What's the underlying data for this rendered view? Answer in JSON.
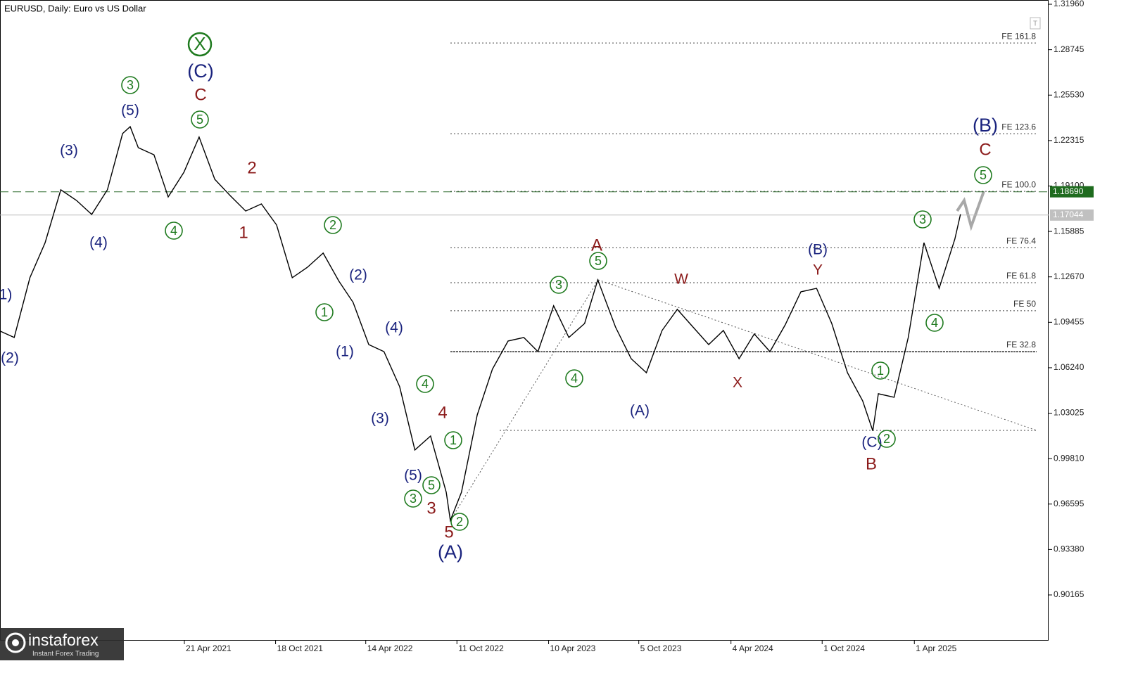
{
  "chart_data": {
    "type": "line",
    "title": "EURUSD, Daily:  Euro vs US Dollar",
    "color": "#000000",
    "x": [
      "2020-04-20",
      "2020-05-20",
      "2020-06-20",
      "2020-07-20",
      "2020-08-20",
      "2020-09-20",
      "2020-10-20",
      "2020-11-20",
      "2020-12-20",
      "2021-01-04",
      "2021-01-20",
      "2021-02-20",
      "2021-03-20",
      "2021-04-20",
      "2021-05-20",
      "2021-06-20",
      "2021-07-20",
      "2021-08-20",
      "2021-09-20",
      "2021-10-20",
      "2021-11-20",
      "2021-12-20",
      "2022-01-20",
      "2022-02-20",
      "2022-03-20",
      "2022-04-20",
      "2022-05-20",
      "2022-06-20",
      "2022-07-20",
      "2022-08-20",
      "2022-09-20",
      "2022-09-28",
      "2022-10-20",
      "2022-11-20",
      "2022-12-20",
      "2023-01-20",
      "2023-02-20",
      "2023-03-20",
      "2023-04-20",
      "2023-05-20",
      "2023-06-20",
      "2023-07-16",
      "2023-08-20",
      "2023-09-20",
      "2023-10-20",
      "2023-11-20",
      "2023-12-20",
      "2024-01-20",
      "2024-02-20",
      "2024-03-20",
      "2024-04-20",
      "2024-05-20",
      "2024-06-20",
      "2024-07-20",
      "2024-08-20",
      "2024-09-20",
      "2024-10-20",
      "2024-11-20",
      "2024-12-20",
      "2025-01-09",
      "2025-01-20",
      "2025-02-20",
      "2025-03-20",
      "2025-04-20",
      "2025-05-20",
      "2025-06-20",
      "2025-07-01"
    ],
    "values": [
      1.0887,
      1.0838,
      1.1261,
      1.1509,
      1.1883,
      1.1808,
      1.1709,
      1.1883,
      1.2281,
      1.233,
      1.2181,
      1.2131,
      1.1833,
      1.2007,
      1.2256,
      1.1957,
      1.1843,
      1.1733,
      1.1783,
      1.1634,
      1.1261,
      1.1335,
      1.1435,
      1.1236,
      1.1087,
      1.0788,
      1.0738,
      1.049,
      1.0042,
      1.0141,
      0.9743,
      0.9544,
      0.9743,
      1.029,
      1.0614,
      1.0813,
      1.0838,
      1.0738,
      1.1062,
      1.0838,
      1.0937,
      1.1246,
      1.0912,
      1.0688,
      1.0589,
      1.0888,
      1.1037,
      1.0912,
      1.0788,
      1.0888,
      1.0688,
      1.0863,
      1.0738,
      1.0927,
      1.1161,
      1.1186,
      1.0937,
      1.0589,
      1.039,
      1.0178,
      1.044,
      1.0415,
      1.0838,
      1.1509,
      1.1186,
      1.1534,
      1.171
    ],
    "xlim": [
      "2020-04-22",
      "2025-12-22"
    ],
    "xticks": [
      {
        "value": "2021-04-21",
        "label": "21 Apr 2021"
      },
      {
        "value": "2021-10-18",
        "label": "18 Oct 2021"
      },
      {
        "value": "2022-04-14",
        "label": "14 Apr 2022"
      },
      {
        "value": "2022-10-11",
        "label": "11 Oct 2022"
      },
      {
        "value": "2023-04-10",
        "label": "10 Apr 2023"
      },
      {
        "value": "2023-10-05",
        "label": "5 Oct 2023"
      },
      {
        "value": "2024-04-04",
        "label": "4 Apr 2024"
      },
      {
        "value": "2024-10-01",
        "label": "1 Oct 2024"
      },
      {
        "value": "2025-04-01",
        "label": "1 Apr 2025"
      }
    ],
    "ylim": [
      0.8698,
      1.3226
    ],
    "yticks": [
      {
        "value": 1.3196,
        "label": "1.31960"
      },
      {
        "value": 1.28745,
        "label": "1.28745"
      },
      {
        "value": 1.2553,
        "label": "1.25530"
      },
      {
        "value": 1.22315,
        "label": "1.22315"
      },
      {
        "value": 1.191,
        "label": "1.19100"
      },
      {
        "value": 1.15885,
        "label": "1.15885"
      },
      {
        "value": 1.1267,
        "label": "1.12670"
      },
      {
        "value": 1.09455,
        "label": "1.09455"
      },
      {
        "value": 1.0624,
        "label": "1.06240"
      },
      {
        "value": 1.03025,
        "label": "1.03025"
      },
      {
        "value": 0.9981,
        "label": "0.99810"
      },
      {
        "value": 0.96595,
        "label": "0.96595"
      },
      {
        "value": 0.9338,
        "label": "0.93380"
      },
      {
        "value": 0.90165,
        "label": "0.90165"
      }
    ],
    "levels": [
      {
        "value": 1.1869,
        "label": "1.18690",
        "color": "#1e6b1e"
      },
      {
        "value": 1.17044,
        "label": "1.17044",
        "color": "#c0c0c0"
      }
    ],
    "fib_levels": [
      {
        "value": 1.2922,
        "label": "FE 161.8"
      },
      {
        "value": 1.228,
        "label": "FE 123.6"
      },
      {
        "value": 1.1872,
        "label": "FE 100.0"
      },
      {
        "value": 1.1474,
        "label": "FE 76.4"
      },
      {
        "value": 1.1226,
        "label": "FE 61.8"
      },
      {
        "value": 1.1027,
        "label": "FE 50"
      },
      {
        "value": 1.0738,
        "label": "FE 32.8"
      },
      {
        "value": 1.0181
      }
    ],
    "annotations": [
      {
        "text": "1)"
      },
      {
        "text": "(2)"
      },
      {
        "text": "(3)"
      },
      {
        "text": "(4)"
      },
      {
        "text": "(5)"
      },
      {
        "text": "3"
      },
      {
        "text": "X"
      },
      {
        "text": "(C)"
      },
      {
        "text": "C"
      },
      {
        "text": "5"
      },
      {
        "text": "4"
      },
      {
        "text": "2"
      },
      {
        "text": "1"
      },
      {
        "text": "2"
      },
      {
        "text": "(2)"
      },
      {
        "text": "1"
      },
      {
        "text": "(1)"
      },
      {
        "text": "(4)"
      },
      {
        "text": "4"
      },
      {
        "text": "(3)"
      },
      {
        "text": "4"
      },
      {
        "text": "1"
      },
      {
        "text": "(5)"
      },
      {
        "text": "5"
      },
      {
        "text": "3"
      },
      {
        "text": "3"
      },
      {
        "text": "2"
      },
      {
        "text": "5"
      },
      {
        "text": "(A)"
      },
      {
        "text": "A"
      },
      {
        "text": "5"
      },
      {
        "text": "3"
      },
      {
        "text": "4"
      },
      {
        "text": "(A)"
      },
      {
        "text": "W"
      },
      {
        "text": "X"
      },
      {
        "text": "(B)"
      },
      {
        "text": "Y"
      },
      {
        "text": "1"
      },
      {
        "text": "(C)"
      },
      {
        "text": "2"
      },
      {
        "text": "B"
      },
      {
        "text": "3"
      },
      {
        "text": "4"
      },
      {
        "text": "(B)"
      },
      {
        "text": "C"
      },
      {
        "text": "5"
      }
    ]
  },
  "logo": {
    "name": "instaforex",
    "tagline": "Instant Forex Trading"
  }
}
